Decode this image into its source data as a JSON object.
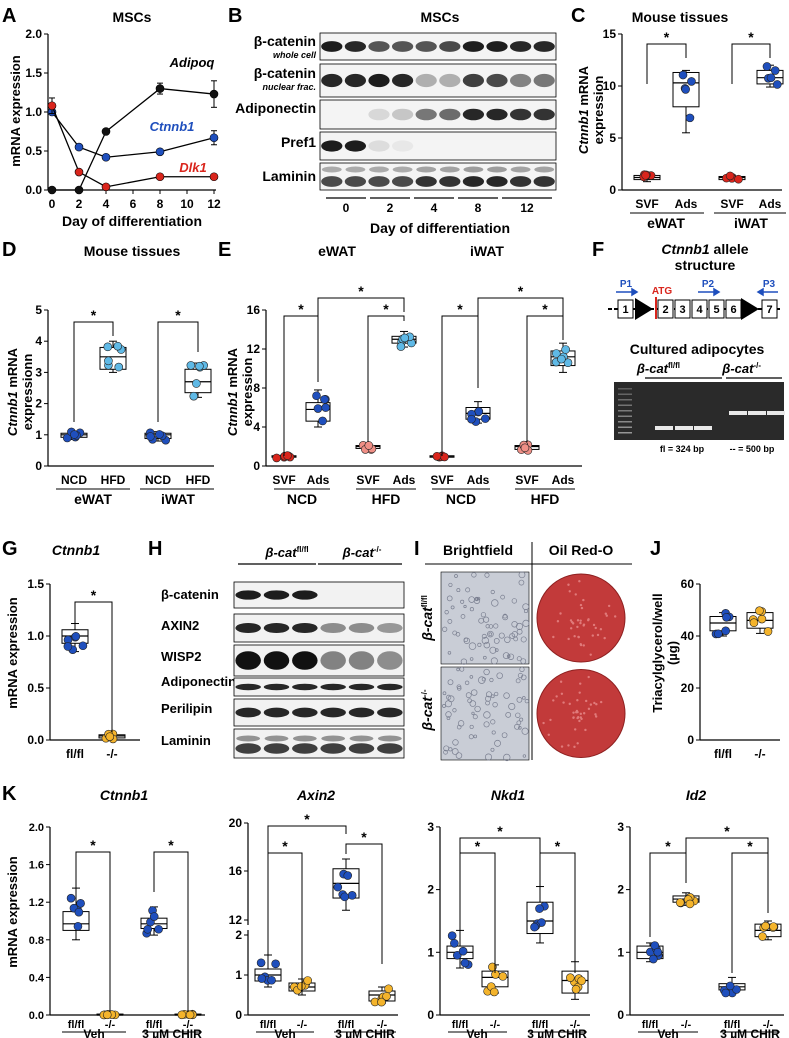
{
  "panels": {
    "A": {
      "letter": "A",
      "title": "MSCs",
      "ylabel": "mRNA expression",
      "xlabel": "Day of differentiation",
      "xticks": [
        "0",
        "2",
        "4",
        "6",
        "8",
        "10",
        "12"
      ],
      "yticks": [
        "0.0",
        "0.5",
        "1.0",
        "1.5",
        "2.0"
      ],
      "series_labels": [
        "Adipoq",
        "Ctnnb1",
        "Dlk1"
      ]
    },
    "B": {
      "letter": "B",
      "title": "MSCs",
      "rows": [
        "β-catenin",
        "Adiponectin",
        "Pref1",
        "Laminin"
      ],
      "row_sub": [
        "whole cell",
        "nuclear frac."
      ],
      "days": [
        "0",
        "2",
        "4",
        "8",
        "12"
      ],
      "xlabel": "Day of differentiation"
    },
    "C": {
      "letter": "C",
      "title": "Mouse tissues",
      "ylabel_a": "Ctnnb1",
      "ylabel_b": " mRNA",
      "ylabel_c": "expression",
      "yticks": [
        "0",
        "5",
        "10",
        "15"
      ],
      "cats": [
        "SVF",
        "Ads",
        "SVF",
        "Ads"
      ],
      "groups": [
        "eWAT",
        "iWAT"
      ],
      "sig": "*"
    },
    "D": {
      "letter": "D",
      "title": "Mouse tissues",
      "ylabel_a": "Ctnnb1",
      "ylabel_b": " mRNA",
      "ylabel_c": "expressionn",
      "yticks": [
        "0",
        "1",
        "2",
        "3",
        "4",
        "5"
      ],
      "cats": [
        "NCD",
        "HFD",
        "NCD",
        "HFD"
      ],
      "groups": [
        "eWAT",
        "iWAT"
      ],
      "sig": "*"
    },
    "E": {
      "letter": "E",
      "titles": [
        "eWAT",
        "iWAT"
      ],
      "ylabel_a": "Ctnnb1",
      "ylabel_b": " mRNA",
      "ylabel_c": "expression",
      "yticks": [
        "0",
        "4",
        "8",
        "12",
        "16"
      ],
      "cats": [
        "SVF",
        "Ads",
        "SVF",
        "Ads",
        "SVF",
        "Ads",
        "SVF",
        "Ads"
      ],
      "groups": [
        "NCD",
        "HFD",
        "NCD",
        "HFD"
      ],
      "sig": "*"
    },
    "F": {
      "letter": "F",
      "title_a": "Ctnnb1",
      "title_b": " allele",
      "title_c": "structure",
      "primers": [
        "P1",
        "P2",
        "P3"
      ],
      "atg": "ATG",
      "exons": [
        "1",
        "2",
        "3",
        "4",
        "5",
        "6",
        "7"
      ],
      "subtitle": "Cultured adipocytes",
      "lanes": [
        "β-cat",
        "fl/fl",
        "β-cat",
        "-/-"
      ],
      "bp_fl": "fl = 324 bp",
      "bp_ko": "-- = 500 bp"
    },
    "G": {
      "letter": "G",
      "title": "Ctnnb1",
      "ylabel": "mRNA expression",
      "yticks": [
        "0.0",
        "0.5",
        "1.0",
        "1.5"
      ],
      "cats": [
        "fl/fl",
        "-/-"
      ],
      "sig": "*"
    },
    "H": {
      "letter": "H",
      "lanes": [
        "β-cat",
        "fl/fl",
        "β-cat",
        "-/-"
      ],
      "rows": [
        "β-catenin",
        "AXIN2",
        "WISP2",
        "Adiponectin",
        "Perilipin",
        "Laminin"
      ]
    },
    "I": {
      "letter": "I",
      "cols": [
        "Brightfield",
        "Oil Red-O"
      ],
      "rows": [
        "β-cat",
        "fl/fl",
        "β-cat",
        "-/-"
      ]
    },
    "J": {
      "letter": "J",
      "ylabel_a": "Triacylglycerol/well",
      "ylabel_b": "(µg)",
      "yticks": [
        "0",
        "20",
        "40",
        "60"
      ],
      "cats": [
        "fl/fl",
        "-/-"
      ]
    },
    "K": {
      "letter": "K",
      "ylabel": "mRNA expression",
      "titles": [
        "Ctnnb1",
        "Axin2",
        "Nkd1",
        "Id2"
      ],
      "cats": [
        "fl/fl",
        "-/-",
        "fl/fl",
        "-/-"
      ],
      "groups": [
        "Veh",
        "3 µM CHIR"
      ],
      "sig": "*",
      "yticks_1": [
        "0.0",
        "0.2",
        "0.4",
        "0.6",
        "0.8",
        "1.0",
        "1.2",
        "1.4",
        "1.6",
        "1.8",
        "2.0"
      ],
      "yticks_2a": [
        "0",
        "1",
        "2"
      ],
      "yticks_2b": [
        "12",
        "16",
        "20"
      ],
      "yticks_3": [
        "0",
        "1",
        "2",
        "3"
      ]
    }
  },
  "chart_data": [
    {
      "type": "line",
      "title": "MSCs",
      "xlabel": "Day of differentiation",
      "ylabel": "mRNA expression",
      "ylim": [
        0,
        2
      ],
      "x": [
        0,
        2,
        4,
        8,
        12
      ],
      "series": [
        {
          "name": "Adipoq",
          "values": [
            0.0,
            0.0,
            0.75,
            1.3,
            1.23
          ]
        },
        {
          "name": "Ctnnb1",
          "values": [
            1.0,
            0.55,
            0.42,
            0.49,
            0.67
          ]
        },
        {
          "name": "Dlk1",
          "values": [
            1.08,
            0.23,
            0.04,
            0.17,
            0.17
          ]
        }
      ]
    },
    {
      "type": "scatter",
      "title": "Mouse tissues",
      "ylim": [
        0,
        15
      ],
      "categories": [
        "SVF",
        "Ads",
        "SVF",
        "Ads"
      ],
      "medians": [
        1.2,
        10.3,
        1.2,
        10.8
      ]
    },
    {
      "type": "scatter",
      "title": "Mouse tissues",
      "ylim": [
        0,
        5
      ],
      "categories": [
        "NCD",
        "HFD",
        "NCD",
        "HFD"
      ],
      "medians": [
        1.0,
        3.5,
        1.0,
        2.7
      ]
    },
    {
      "type": "scatter",
      "ylim": [
        0,
        16
      ],
      "categories": [
        "SVF",
        "Ads",
        "SVF",
        "Ads",
        "SVF",
        "Ads",
        "SVF",
        "Ads"
      ],
      "medians": [
        1.0,
        5.8,
        2.0,
        13.0,
        1.0,
        5.4,
        2.0,
        11.2
      ]
    },
    {
      "type": "scatter",
      "title": "Ctnnb1",
      "ylim": [
        0,
        1.5
      ],
      "categories": [
        "fl/fl",
        "-/-"
      ],
      "medians": [
        1.0,
        0.04
      ]
    },
    {
      "type": "scatter",
      "ylim": [
        0,
        60
      ],
      "categories": [
        "fl/fl",
        "-/-"
      ],
      "medians": [
        45,
        46
      ]
    },
    {
      "type": "scatter",
      "title": "Ctnnb1",
      "ylim": [
        0,
        2
      ],
      "categories": [
        "fl/fl",
        "-/-",
        "fl/fl",
        "-/-"
      ],
      "medians": [
        0.97,
        0.0,
        0.97,
        0.0
      ]
    },
    {
      "type": "scatter",
      "title": "Axin2",
      "categories": [
        "fl/fl",
        "-/-",
        "fl/fl",
        "-/-"
      ],
      "medians": [
        1.0,
        0.7,
        15.0,
        0.5
      ]
    },
    {
      "type": "scatter",
      "title": "Nkd1",
      "ylim": [
        0,
        3
      ],
      "categories": [
        "fl/fl",
        "-/-",
        "fl/fl",
        "-/-"
      ],
      "medians": [
        1.0,
        0.6,
        1.5,
        0.55
      ]
    },
    {
      "type": "scatter",
      "title": "Id2",
      "ylim": [
        0,
        3
      ],
      "categories": [
        "fl/fl",
        "-/-",
        "fl/fl",
        "-/-"
      ],
      "medians": [
        1.0,
        1.85,
        0.45,
        1.35
      ]
    }
  ],
  "colors": {
    "blue": "#1f4fbd",
    "light_blue": "#5fb9e6",
    "red": "#d9251c",
    "pink": "#ef8f86",
    "yellow": "#f4b42c",
    "black": "#111111"
  }
}
